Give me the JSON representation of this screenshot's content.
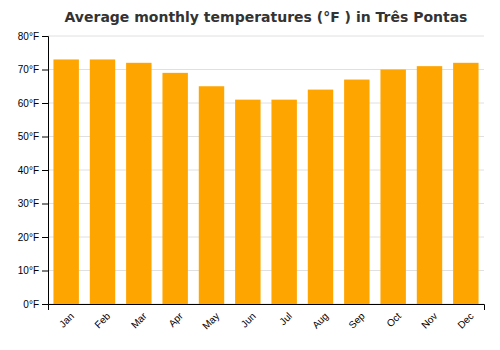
{
  "chart_data": {
    "type": "bar",
    "title": "Average monthly temperatures (°F ) in Três Pontas",
    "categories": [
      "Jan",
      "Feb",
      "Mar",
      "Apr",
      "May",
      "Jun",
      "Jul",
      "Aug",
      "Sep",
      "Oct",
      "Nov",
      "Dec"
    ],
    "values": [
      73,
      73,
      72,
      69,
      65,
      61,
      61,
      64,
      67,
      70,
      71,
      72
    ],
    "color": "#FFA500",
    "ylim": [
      0,
      80
    ],
    "yticks": [
      {
        "value": 0,
        "label": "0°F"
      },
      {
        "value": 10,
        "label": "10°F"
      },
      {
        "value": 20,
        "label": "20°F"
      },
      {
        "value": 30,
        "label": "30°F"
      },
      {
        "value": 40,
        "label": "40°F"
      },
      {
        "value": 50,
        "label": "50°F"
      },
      {
        "value": 60,
        "label": "60°F"
      },
      {
        "value": 70,
        "label": "70°F"
      },
      {
        "value": 80,
        "label": "80°F"
      }
    ],
    "grid": true
  }
}
